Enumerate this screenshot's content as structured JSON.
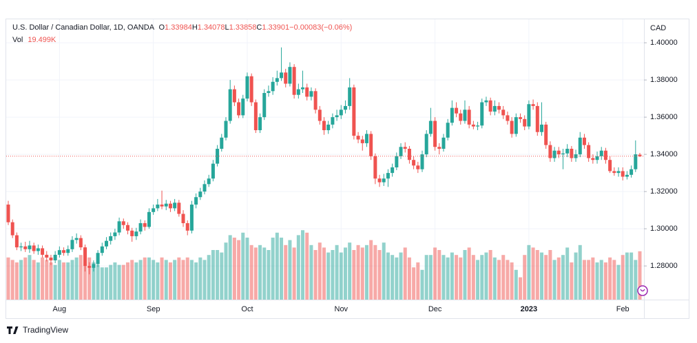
{
  "chart_data": {
    "type": "candlestick",
    "title": "U.S. Dollar / Canadian Dollar, 1D, OANDA",
    "ohlc_letters": [
      "O",
      "H",
      "L",
      "C"
    ],
    "change": {
      "value": -0.00083,
      "label": "−0.00083"
    },
    "change_percent": {
      "value": -0.06,
      "label": "(−0.06%)"
    },
    "volume_name": "Vol",
    "volume_label": "19.499K",
    "y_axis_label": "CAD",
    "footer": "TradingView",
    "up_color": "#26a69a",
    "down_color": "#ef5350",
    "grid": true,
    "ylim": [
      1.2619,
      1.413
    ],
    "yticks": [
      {
        "value": 1.28,
        "label": "1.28000"
      },
      {
        "value": 1.3,
        "label": "1.30000"
      },
      {
        "value": 1.32,
        "label": "1.32000"
      },
      {
        "value": 1.34,
        "label": "1.34000"
      },
      {
        "value": 1.36,
        "label": "1.36000"
      },
      {
        "value": 1.38,
        "label": "1.38000"
      },
      {
        "value": 1.4,
        "label": "1.40000"
      }
    ],
    "categories": [
      null,
      null,
      null,
      null,
      null,
      null,
      null,
      null,
      null,
      null,
      null,
      null,
      "Aug",
      null,
      null,
      null,
      null,
      null,
      null,
      null,
      null,
      null,
      null,
      null,
      null,
      null,
      null,
      null,
      null,
      null,
      null,
      null,
      null,
      null,
      "Sep",
      null,
      null,
      null,
      null,
      null,
      null,
      null,
      null,
      null,
      null,
      null,
      null,
      null,
      null,
      null,
      null,
      null,
      null,
      null,
      null,
      null,
      "Oct",
      null,
      null,
      null,
      null,
      null,
      null,
      null,
      null,
      null,
      null,
      null,
      null,
      null,
      null,
      null,
      null,
      null,
      null,
      null,
      null,
      null,
      "Nov",
      null,
      null,
      null,
      null,
      null,
      null,
      null,
      null,
      null,
      null,
      null,
      null,
      null,
      null,
      null,
      null,
      null,
      null,
      null,
      null,
      null,
      "Dec",
      null,
      null,
      null,
      null,
      null,
      null,
      null,
      null,
      null,
      null,
      null,
      null,
      null,
      null,
      null,
      null,
      null,
      null,
      null,
      null,
      null,
      "2023",
      null,
      null,
      null,
      null,
      null,
      null,
      null,
      null,
      null,
      null,
      null,
      null,
      null,
      null,
      null,
      null,
      null,
      null,
      null,
      null,
      null,
      "Feb",
      null,
      null,
      null,
      null
    ],
    "open": [
      1.313,
      1.3035,
      1.2965,
      1.29,
      1.2905,
      1.289,
      1.291,
      1.288,
      1.2895,
      1.286,
      1.2845,
      1.283,
      1.286,
      1.2885,
      1.287,
      1.289,
      1.294,
      1.295,
      1.29,
      1.28,
      1.279,
      1.281,
      1.287,
      1.2905,
      1.2935,
      1.296,
      1.298,
      1.304,
      1.302,
      1.299,
      1.296,
      1.2985,
      1.303,
      1.301,
      1.309,
      1.311,
      1.313,
      1.312,
      1.3135,
      1.311,
      1.314,
      1.308,
      1.303,
      1.299,
      1.313,
      1.317,
      1.32,
      1.324,
      1.327,
      1.335,
      1.343,
      1.349,
      1.358,
      1.375,
      1.368,
      1.361,
      1.37,
      1.382,
      1.368,
      1.353,
      1.36,
      1.373,
      1.374,
      1.379,
      1.381,
      1.384,
      1.378,
      1.387,
      1.372,
      1.375,
      1.376,
      1.371,
      1.374,
      1.364,
      1.358,
      1.353,
      1.356,
      1.36,
      1.361,
      1.364,
      1.366,
      1.376,
      1.35,
      1.348,
      1.346,
      1.351,
      1.339,
      1.327,
      1.325,
      1.327,
      1.33,
      1.333,
      1.339,
      1.344,
      1.343,
      1.337,
      1.334,
      1.332,
      1.34,
      1.351,
      1.358,
      1.344,
      1.343,
      1.349,
      1.357,
      1.365,
      1.362,
      1.358,
      1.364,
      1.356,
      1.355,
      1.3555,
      1.368,
      1.369,
      1.363,
      1.366,
      1.364,
      1.361,
      1.358,
      1.351,
      1.36,
      1.359,
      1.355,
      1.367,
      1.366,
      1.352,
      1.356,
      1.345,
      1.338,
      1.342,
      1.34,
      1.3405,
      1.343,
      1.338,
      1.34,
      1.349,
      1.345,
      1.338,
      1.337,
      1.339,
      1.342,
      1.337,
      1.331,
      1.33,
      1.331,
      1.328,
      1.329,
      1.332,
      1.33984
    ],
    "high": [
      1.315,
      1.305,
      1.298,
      1.2925,
      1.293,
      1.2935,
      1.2925,
      1.2915,
      1.291,
      1.288,
      1.286,
      1.288,
      1.2905,
      1.29,
      1.291,
      1.296,
      1.2975,
      1.2965,
      1.2915,
      1.282,
      1.283,
      1.2885,
      1.2925,
      1.2955,
      1.298,
      1.3,
      1.306,
      1.3055,
      1.3035,
      1.3005,
      1.3005,
      1.305,
      1.3045,
      1.311,
      1.313,
      1.316,
      1.3205,
      1.3155,
      1.315,
      1.316,
      1.3155,
      1.31,
      1.3045,
      1.315,
      1.319,
      1.322,
      1.326,
      1.329,
      1.337,
      1.345,
      1.351,
      1.36,
      1.38,
      1.377,
      1.37,
      1.372,
      1.384,
      1.3835,
      1.3695,
      1.362,
      1.375,
      1.377,
      1.3815,
      1.385,
      1.3975,
      1.386,
      1.3895,
      1.3885,
      1.378,
      1.385,
      1.378,
      1.376,
      1.3755,
      1.366,
      1.36,
      1.358,
      1.362,
      1.364,
      1.3665,
      1.369,
      1.381,
      1.3775,
      1.352,
      1.35,
      1.353,
      1.3525,
      1.3405,
      1.329,
      1.3295,
      1.332,
      1.335,
      1.341,
      1.346,
      1.3465,
      1.3445,
      1.339,
      1.336,
      1.342,
      1.353,
      1.365,
      1.36,
      1.346,
      1.351,
      1.359,
      1.369,
      1.368,
      1.364,
      1.369,
      1.366,
      1.358,
      1.3575,
      1.37,
      1.371,
      1.3705,
      1.369,
      1.368,
      1.366,
      1.363,
      1.36,
      1.362,
      1.362,
      1.361,
      1.369,
      1.3695,
      1.368,
      1.368,
      1.3575,
      1.347,
      1.344,
      1.344,
      1.343,
      1.3455,
      1.3445,
      1.3425,
      1.352,
      1.351,
      1.3465,
      1.34,
      1.3415,
      1.344,
      1.3435,
      1.339,
      1.333,
      1.333,
      1.333,
      1.331,
      1.334,
      1.3475,
      1.34078
    ],
    "low": [
      1.302,
      1.295,
      1.2885,
      1.288,
      1.2875,
      1.287,
      1.2865,
      1.286,
      1.2845,
      1.2825,
      1.2805,
      1.2815,
      1.2845,
      1.2855,
      1.2855,
      1.2875,
      1.292,
      1.2885,
      1.277,
      1.2755,
      1.277,
      1.2795,
      1.2855,
      1.289,
      1.2915,
      1.294,
      1.2965,
      1.3,
      1.297,
      1.293,
      1.294,
      1.297,
      1.299,
      1.3,
      1.3075,
      1.3095,
      1.3105,
      1.31,
      1.309,
      1.3095,
      1.3065,
      1.301,
      1.2965,
      1.2975,
      1.311,
      1.3155,
      1.3185,
      1.3225,
      1.3255,
      1.3335,
      1.3415,
      1.3475,
      1.3565,
      1.366,
      1.3595,
      1.3595,
      1.3685,
      1.366,
      1.3515,
      1.3515,
      1.3585,
      1.371,
      1.372,
      1.377,
      1.3795,
      1.376,
      1.3765,
      1.37,
      1.37,
      1.373,
      1.369,
      1.369,
      1.362,
      1.356,
      1.3505,
      1.351,
      1.354,
      1.358,
      1.359,
      1.362,
      1.364,
      1.348,
      1.346,
      1.342,
      1.344,
      1.337,
      1.324,
      1.3225,
      1.323,
      1.3225,
      1.328,
      1.3315,
      1.3375,
      1.341,
      1.335,
      1.332,
      1.33,
      1.3305,
      1.3385,
      1.3495,
      1.342,
      1.34,
      1.3415,
      1.3475,
      1.3555,
      1.36,
      1.356,
      1.3565,
      1.354,
      1.3535,
      1.353,
      1.354,
      1.366,
      1.361,
      1.361,
      1.362,
      1.359,
      1.356,
      1.349,
      1.3495,
      1.357,
      1.353,
      1.3535,
      1.364,
      1.35,
      1.35,
      1.343,
      1.336,
      1.336,
      1.338,
      1.332,
      1.3385,
      1.336,
      1.336,
      1.3385,
      1.343,
      1.336,
      1.335,
      1.335,
      1.337,
      1.335,
      1.33,
      1.3285,
      1.328,
      1.326,
      1.3265,
      1.3275,
      1.3305,
      1.33858
    ],
    "close": [
      1.3035,
      1.2965,
      1.29,
      1.2905,
      1.289,
      1.291,
      1.288,
      1.2895,
      1.286,
      1.2845,
      1.283,
      1.286,
      1.2885,
      1.287,
      1.289,
      1.294,
      1.295,
      1.29,
      1.28,
      1.279,
      1.281,
      1.287,
      1.2905,
      1.2935,
      1.296,
      1.298,
      1.304,
      1.302,
      1.299,
      1.296,
      1.2985,
      1.303,
      1.301,
      1.309,
      1.311,
      1.313,
      1.312,
      1.3135,
      1.311,
      1.314,
      1.308,
      1.303,
      1.299,
      1.313,
      1.317,
      1.32,
      1.324,
      1.327,
      1.335,
      1.343,
      1.349,
      1.358,
      1.375,
      1.368,
      1.361,
      1.37,
      1.382,
      1.368,
      1.353,
      1.36,
      1.373,
      1.374,
      1.379,
      1.381,
      1.384,
      1.378,
      1.387,
      1.372,
      1.375,
      1.376,
      1.371,
      1.374,
      1.364,
      1.358,
      1.353,
      1.356,
      1.36,
      1.361,
      1.364,
      1.366,
      1.376,
      1.35,
      1.348,
      1.346,
      1.351,
      1.339,
      1.327,
      1.325,
      1.327,
      1.33,
      1.333,
      1.339,
      1.344,
      1.343,
      1.337,
      1.334,
      1.332,
      1.34,
      1.351,
      1.358,
      1.344,
      1.343,
      1.349,
      1.357,
      1.365,
      1.362,
      1.358,
      1.364,
      1.356,
      1.355,
      1.3555,
      1.368,
      1.369,
      1.363,
      1.366,
      1.364,
      1.361,
      1.358,
      1.351,
      1.36,
      1.359,
      1.355,
      1.367,
      1.366,
      1.352,
      1.356,
      1.345,
      1.338,
      1.342,
      1.34,
      1.3405,
      1.343,
      1.338,
      1.34,
      1.349,
      1.345,
      1.338,
      1.337,
      1.339,
      1.342,
      1.337,
      1.331,
      1.33,
      1.331,
      1.328,
      1.329,
      1.332,
      1.34,
      1.33901
    ],
    "volume": [
      17,
      16,
      15,
      16,
      17,
      18,
      16,
      15,
      17,
      16,
      15,
      14,
      16,
      15,
      15,
      16,
      17,
      18,
      16,
      17,
      15,
      14,
      13,
      13,
      14,
      15,
      14,
      14,
      15,
      16,
      15,
      16,
      17,
      17,
      16,
      15,
      17,
      16,
      15,
      16,
      17,
      16,
      17,
      16,
      15,
      17,
      16,
      18,
      20,
      20,
      19,
      23,
      26,
      25,
      24,
      27,
      25,
      22,
      21,
      22,
      21,
      20,
      25,
      27,
      25,
      22,
      24,
      21,
      26,
      28,
      27,
      22,
      20,
      23,
      21,
      19,
      20,
      22,
      19,
      21,
      23,
      20,
      22,
      21,
      22,
      24,
      22,
      20,
      23,
      19,
      18,
      17,
      19,
      21,
      17,
      13,
      15,
      12,
      18,
      18,
      21,
      20,
      18,
      17,
      19,
      18,
      17,
      20,
      21,
      18,
      16,
      18,
      19,
      20,
      17,
      16,
      18,
      16,
      15,
      12,
      9,
      18,
      22,
      21,
      20,
      19,
      18,
      20,
      16,
      17,
      18,
      21,
      15,
      19,
      22,
      16,
      16,
      17,
      15,
      16,
      15,
      17,
      16,
      14,
      18,
      19,
      19,
      16,
      19.499
    ]
  }
}
